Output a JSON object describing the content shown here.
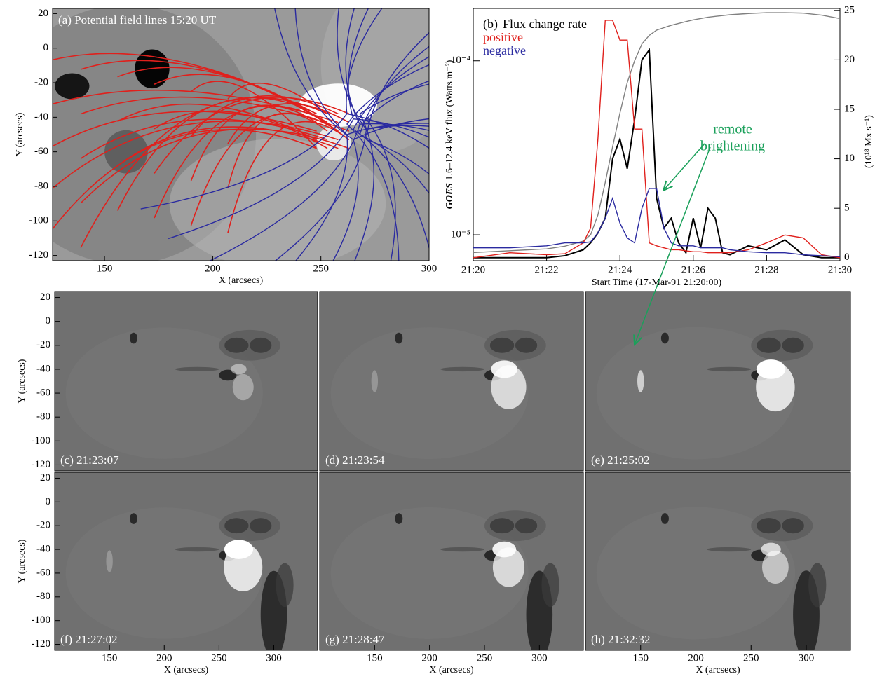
{
  "chart_data": [
    {
      "type": "image",
      "label": "(a) Potential field lines 15:20 UT",
      "xlim": [
        126,
        300
      ],
      "ylim": [
        -123,
        23
      ],
      "xticks": [
        150,
        200,
        250,
        300
      ],
      "yticks": [
        20,
        0,
        -20,
        -40,
        -60,
        -80,
        -100,
        -120
      ],
      "xlabel": "X (arcsecs)",
      "ylabel": "Y (arcsecs)"
    },
    {
      "type": "line",
      "label": "(b)",
      "ylog": true,
      "xlabel": "Start Time (17-Mar-91 21:20:00)",
      "ylabel_em": "GOES",
      "ylabel": " 1.6–12.4 keV flux (Watts m⁻²)",
      "y2label": "(10¹⁸ Mx s⁻¹)",
      "annotations": [
        "remote",
        "brightening"
      ],
      "annotation_color": "#1aa05a",
      "xlim": [
        0,
        10
      ],
      "xticks": [
        {
          "value": 0,
          "label": "21:20"
        },
        {
          "value": 2,
          "label": "21:22"
        },
        {
          "value": 4,
          "label": "21:24"
        },
        {
          "value": 6,
          "label": "21:26"
        },
        {
          "value": 8,
          "label": "21:28"
        },
        {
          "value": 10,
          "label": "21:30"
        }
      ],
      "ylim": [
        7.1e-06,
        0.0002
      ],
      "yticks": [
        {
          "value": 0.0001,
          "label": "10⁻⁴"
        },
        {
          "value": 1e-05,
          "label": "10⁻⁵"
        }
      ],
      "y2lim": [
        -0.3,
        25.2
      ],
      "y2ticks": [
        0,
        5,
        10,
        15,
        20,
        25
      ],
      "x": [
        0,
        1,
        2,
        2.5,
        3,
        3.2,
        3.4,
        3.6,
        3.8,
        4.0,
        4.2,
        4.4,
        4.6,
        4.8,
        5.0,
        5.2,
        5.4,
        5.6,
        5.8,
        6.0,
        6.2,
        6.4,
        6.6,
        6.8,
        7.0,
        7.5,
        8.0,
        8.5,
        9.0,
        9.5,
        10
      ],
      "series": [
        {
          "color": "#808080",
          "values": [
            7.9e-06,
            8.1e-06,
            8.3e-06,
            8.6e-06,
            9.2e-06,
            1e-05,
            1.3e-05,
            2e-05,
            3.2e-05,
            5e-05,
            7.5e-05,
            0.0001,
            0.000125,
            0.00014,
            0.00015,
            0.000155,
            0.00016,
            0.000164,
            0.000168,
            0.000172,
            0.000175,
            0.000178,
            0.00018,
            0.000182,
            0.000184,
            0.000187,
            0.000189,
            0.000189,
            0.000188,
            0.000183,
            0.000175
          ]
        },
        {
          "name": "Flux change rate",
          "color": "#000000",
          "axis": "y2",
          "values": [
            0,
            0,
            0,
            0.2,
            0.8,
            1.5,
            2.5,
            4,
            10,
            12,
            9,
            14,
            20,
            21,
            6,
            3,
            4,
            1.5,
            0.5,
            4,
            1,
            5,
            4,
            0.5,
            0.3,
            1.2,
            0.8,
            1.8,
            0.3,
            0,
            0
          ]
        },
        {
          "name": "positive",
          "color": "#e0201c",
          "axis": "y2",
          "values": [
            0,
            0.5,
            0.3,
            0.4,
            1.5,
            3,
            12,
            24,
            24,
            22,
            22,
            13,
            13,
            1.5,
            1.2,
            1,
            0.8,
            0.8,
            0.7,
            0.6,
            0.6,
            0.5,
            0.5,
            0.5,
            0.5,
            0.8,
            1.5,
            2.3,
            2,
            0.3,
            0
          ]
        },
        {
          "name": "negative",
          "color": "#2a2aa0",
          "axis": "y2",
          "values": [
            1,
            1,
            1.2,
            1.5,
            1.5,
            1.6,
            2.5,
            4,
            6,
            3.5,
            2,
            1.5,
            5,
            7,
            7,
            3,
            1.5,
            1.2,
            1.2,
            1.2,
            1,
            1,
            1,
            1,
            0.8,
            0.6,
            0.5,
            0.5,
            0.3,
            0.2,
            0.1
          ]
        }
      ]
    },
    {
      "type": "image",
      "label": "(c) 21:23:07",
      "xlim": [
        100,
        340
      ],
      "ylim": [
        -125,
        25
      ],
      "yticks": [
        20,
        0,
        -20,
        -40,
        -60,
        -80,
        -100,
        -120
      ],
      "ylabel": "Y (arcsecs)"
    },
    {
      "type": "image",
      "label": "(d) 21:23:54",
      "xlim": [
        100,
        340
      ],
      "ylim": [
        -125,
        25
      ]
    },
    {
      "type": "image",
      "label": "(e) 21:25:02",
      "xlim": [
        100,
        340
      ],
      "ylim": [
        -125,
        25
      ]
    },
    {
      "type": "image",
      "label": "(f) 21:27:02",
      "xlim": [
        100,
        340
      ],
      "ylim": [
        -125,
        25
      ],
      "xticks": [
        150,
        200,
        250,
        300
      ],
      "yticks": [
        20,
        0,
        -20,
        -40,
        -60,
        -80,
        -100,
        -120
      ],
      "xlabel": "X (arcsecs)",
      "ylabel": "Y (arcsecs)"
    },
    {
      "type": "image",
      "label": "(g) 21:28:47",
      "xlim": [
        100,
        340
      ],
      "ylim": [
        -125,
        25
      ],
      "xticks": [
        150,
        200,
        250,
        300
      ],
      "xlabel": "X (arcsecs)"
    },
    {
      "type": "image",
      "label": "(h) 21:32:32",
      "xlim": [
        100,
        340
      ],
      "ylim": [
        -125,
        25
      ],
      "xticks": [
        150,
        200,
        250,
        300
      ],
      "xlabel": "X (arcsecs)"
    }
  ]
}
